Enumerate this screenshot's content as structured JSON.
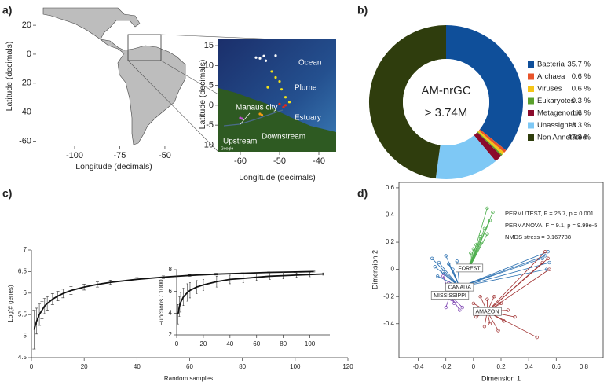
{
  "chart_data": [
    {
      "type": "map",
      "panel": "a)",
      "xlabel": "Longitude (decimals)",
      "ylabel": "Latitude (decimals)",
      "xlim": [
        -117.4,
        -39.1
      ],
      "ylim": [
        -63,
        32
      ],
      "xticks": [
        -100,
        -75,
        -50
      ],
      "yticks": [
        20,
        0,
        -20,
        -40,
        -60
      ],
      "inset": {
        "xlabel": "Longitude (decimals)",
        "ylabel": "Latitude (decimals)",
        "xlim": [
          -65.6,
          -35.6
        ],
        "ylim": [
          -11.7,
          16.6
        ],
        "xticks": [
          -60,
          -50,
          -40
        ],
        "yticks": [
          15,
          10,
          5,
          0,
          -5,
          -10
        ],
        "labels": [
          "Ocean",
          "Plume",
          "Manaus city",
          "Estuary",
          "Upstream",
          "Downstream",
          "Google"
        ],
        "sites": [
          {
            "name": "Ocean",
            "color": "#ffffff",
            "x": [
              -56,
              -55,
              -54,
              -53.5,
              -51
            ],
            "y": [
              12,
              11.8,
              12.4,
              11.2,
              12.5
            ]
          },
          {
            "name": "Plume",
            "color": "#f2e21a",
            "x": [
              -52,
              -51,
              -50,
              -49.5,
              -48.5,
              -47.5,
              -53
            ],
            "y": [
              8.5,
              7,
              6,
              4,
              2,
              0.8,
              4.5
            ]
          },
          {
            "name": "Estuary",
            "color": "#e22a1c",
            "x": [
              -49,
              -48.5,
              -50
            ],
            "y": [
              -0.5,
              0,
              0.3
            ]
          },
          {
            "name": "Downstream",
            "color": "#f39c12",
            "x": [
              -55,
              -54.5
            ],
            "y": [
              -2.2,
              -2.5
            ]
          },
          {
            "name": "Upstream",
            "color": "#c04fd0",
            "x": [
              -60,
              -59.5
            ],
            "y": [
              -3.2,
              -3.4
            ]
          }
        ]
      }
    },
    {
      "type": "donut",
      "panel": "b)",
      "center": [
        "AM-nrGC",
        "> 3.74M"
      ],
      "categories": [
        "Bacteria",
        "Archaea",
        "Viruses",
        "Eukaryotes",
        "Metagenomic",
        "Unassigned",
        "Non Annotated"
      ],
      "values": [
        35.7,
        0.6,
        0.6,
        0.3,
        1.6,
        13.3,
        47.8
      ],
      "value_labels": [
        "35.7 %",
        "0.6 %",
        "0.6 %",
        "0.3 %",
        "1.6 %",
        "13.3 %",
        "47.8 %"
      ],
      "colors": [
        "#0f4f9a",
        "#e8532a",
        "#f5c518",
        "#5aa02c",
        "#8b0a2b",
        "#7ec8f5",
        "#2f3d0d"
      ]
    },
    {
      "type": "line",
      "panel": "c)",
      "xlabel": "Random samples",
      "ylabel": "Log(# genes)",
      "xlim": [
        0,
        120
      ],
      "ylim": [
        4.5,
        7
      ],
      "xticks": [
        0,
        20,
        40,
        60,
        80,
        100,
        120
      ],
      "yticks": [
        4.5,
        5,
        5.5,
        6,
        6.5,
        7
      ],
      "series": [
        {
          "color": "#111111",
          "x": [
            1,
            2,
            3,
            4,
            5,
            6,
            8,
            10,
            12,
            15,
            20,
            25,
            30,
            40,
            50,
            60,
            70,
            80,
            90,
            100,
            107
          ],
          "values": [
            5.15,
            5.35,
            5.5,
            5.6,
            5.7,
            5.76,
            5.86,
            5.93,
            5.99,
            6.06,
            6.14,
            6.2,
            6.25,
            6.32,
            6.37,
            6.41,
            6.44,
            6.46,
            6.48,
            6.49,
            6.5
          ],
          "errors": [
            0.45,
            0.3,
            0.25,
            0.2,
            0.18,
            0.16,
            0.13,
            0.11,
            0.1,
            0.09,
            0.07,
            0.06,
            0.05,
            0.04,
            0.03,
            0.02,
            0.02,
            0.01,
            0.01,
            0.01,
            0.01
          ]
        }
      ],
      "inset": {
        "ylabel": "Functions / 1000",
        "xlim": [
          0,
          115
        ],
        "ylim": [
          2,
          8
        ],
        "xticks": [
          0,
          20,
          40,
          60,
          80,
          100
        ],
        "yticks": [
          2,
          4,
          6,
          8
        ],
        "series": [
          {
            "color": "#111111",
            "x": [
              1,
              2,
              3,
              5,
              8,
              10,
              15,
              20,
              30,
              40,
              50,
              60,
              70,
              80,
              90,
              100,
              110
            ],
            "values": [
              3.9,
              4.6,
              5.0,
              5.5,
              5.9,
              6.1,
              6.4,
              6.6,
              6.9,
              7.1,
              7.2,
              7.3,
              7.4,
              7.45,
              7.5,
              7.55,
              7.6
            ],
            "errors": [
              0.9,
              0.9,
              0.9,
              0.8,
              0.8,
              0.7,
              0.6,
              0.5,
              0.5,
              0.4,
              0.4,
              0.3,
              0.3,
              0.3,
              0.2,
              0.2,
              0.1
            ]
          }
        ]
      }
    },
    {
      "type": "scatter",
      "panel": "d)",
      "xlabel": "Dimension 1",
      "ylabel": "Dimension 2",
      "xlim": [
        -0.54,
        0.94
      ],
      "ylim": [
        -0.65,
        0.64
      ],
      "xticks": [
        -0.4,
        -0.2,
        0,
        0.2,
        0.4,
        0.6,
        0.8
      ],
      "yticks": [
        0.6,
        0.4,
        0.2,
        0,
        -0.2,
        -0.4
      ],
      "annotations": [
        "PERMUTEST, F = 25.7, p = 0.001",
        "PERMANOVA, F = 9.1, p = 9.99e-5",
        "NMDS stress = 0.167788"
      ],
      "series": [
        {
          "name": "FOREST",
          "color": "#4cae4c",
          "cx": -0.03,
          "cy": 0.01,
          "x": [
            0.1,
            0.14,
            0.12,
            0.08,
            0.05,
            0.02,
            -0.02,
            0.0,
            0.06,
            0.1
          ],
          "values": [
            0.45,
            0.42,
            0.36,
            0.3,
            0.24,
            0.18,
            0.12,
            0.15,
            0.2,
            0.26
          ]
        },
        {
          "name": "CANADA",
          "color": "#2a6fb0",
          "cx": -0.1,
          "cy": -0.13,
          "x": [
            -0.3,
            -0.28,
            -0.25,
            -0.22,
            -0.2,
            -0.18,
            -0.26,
            -0.15,
            -0.12,
            0.5,
            0.52,
            0.54,
            0.55,
            0.53
          ],
          "values": [
            0.08,
            0.02,
            0.05,
            -0.02,
            0.1,
            0.04,
            -0.05,
            0.0,
            0.06,
            0.08,
            0.1,
            0.13,
            0.05,
            0.0
          ]
        },
        {
          "name": "MISSISSIPPI",
          "color": "#7a3fb0",
          "cx": -0.17,
          "cy": -0.19,
          "x": [
            -0.22,
            -0.18,
            -0.14,
            -0.1,
            -0.08,
            -0.05,
            -0.12,
            -0.16,
            -0.2,
            -0.02
          ],
          "values": [
            -0.05,
            -0.1,
            -0.25,
            -0.3,
            -0.28,
            -0.2,
            -0.15,
            -0.22,
            -0.28,
            -0.12
          ]
        },
        {
          "name": "AMAZON",
          "color": "#a03030",
          "cx": 0.1,
          "cy": -0.31,
          "x": [
            0.0,
            0.05,
            0.1,
            0.15,
            0.2,
            0.25,
            0.3,
            0.12,
            0.08,
            0.18,
            0.52,
            0.54,
            0.55,
            0.5,
            0.46,
            0.22,
            0.02
          ],
          "values": [
            -0.25,
            -0.2,
            -0.22,
            -0.2,
            -0.25,
            -0.3,
            -0.35,
            -0.4,
            -0.42,
            -0.45,
            0.13,
            0.08,
            0.0,
            0.05,
            -0.5,
            -0.38,
            -0.35
          ]
        }
      ]
    }
  ]
}
